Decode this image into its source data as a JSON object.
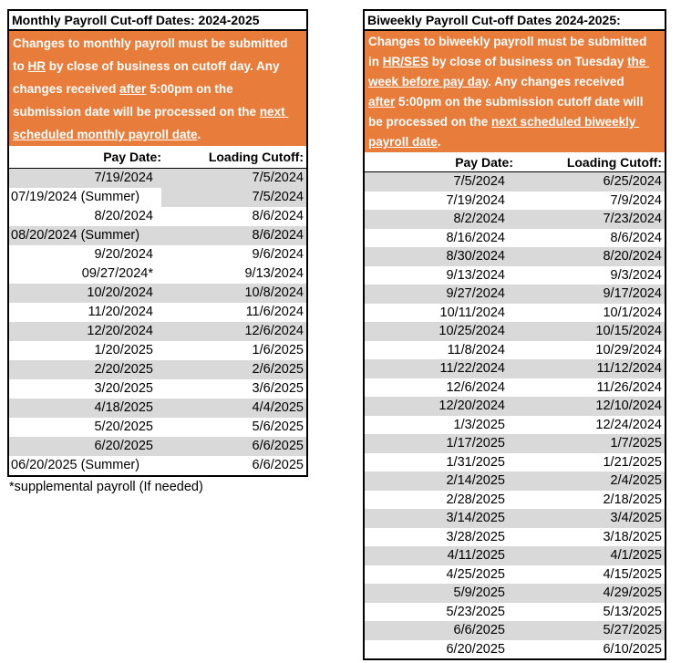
{
  "colors": {
    "note_orange": "#E87C3A",
    "band_gray": "#D9D9D9",
    "border_black": "#000000",
    "note_text_white": "#ffffff",
    "body_text_black": "#000000"
  },
  "monthly": {
    "title": "Monthly Payroll Cut-off Dates: 2024-2025",
    "note_segments": [
      {
        "text": "Changes to monthly payroll must be submitted\nto ",
        "underline": false
      },
      {
        "text": "HR",
        "underline": true
      },
      {
        "text": " by close of business on cutoff day. Any\nchanges received ",
        "underline": false
      },
      {
        "text": "after",
        "underline": true
      },
      {
        "text": " 5:00pm on the\nsubmission date will be processed on the ",
        "underline": false
      },
      {
        "text": "next \nscheduled monthly payroll date",
        "underline": true
      },
      {
        "text": ".",
        "underline": false
      }
    ],
    "columns": {
      "pay": "Pay Date:",
      "cutoff": "Loading Cutoff:"
    },
    "rows": [
      {
        "pay": "7/19/2024",
        "cutoff": "7/5/2024",
        "bg": [
          "gray",
          "gray"
        ]
      },
      {
        "pay": "07/19/2024 (Summer)",
        "cutoff": "7/5/2024",
        "bg": [
          "white",
          "gray"
        ]
      },
      {
        "pay": "8/20/2024",
        "cutoff": "8/6/2024",
        "bg": [
          "white",
          "white"
        ]
      },
      {
        "pay": "08/20/2024 (Summer)",
        "cutoff": "8/6/2024",
        "bg": [
          "gray",
          "gray"
        ]
      },
      {
        "pay": "9/20/2024",
        "cutoff": "9/6/2024",
        "bg": [
          "white",
          "white"
        ]
      },
      {
        "pay": "09/27/2024*",
        "cutoff": "9/13/2024",
        "bg": [
          "white",
          "white"
        ]
      },
      {
        "pay": "10/20/2024",
        "cutoff": "10/8/2024",
        "bg": [
          "gray",
          "gray"
        ]
      },
      {
        "pay": "11/20/2024",
        "cutoff": "11/6/2024",
        "bg": [
          "white",
          "white"
        ]
      },
      {
        "pay": "12/20/2024",
        "cutoff": "12/6/2024",
        "bg": [
          "gray",
          "gray"
        ]
      },
      {
        "pay": "1/20/2025",
        "cutoff": "1/6/2025",
        "bg": [
          "white",
          "white"
        ]
      },
      {
        "pay": "2/20/2025",
        "cutoff": "2/6/2025",
        "bg": [
          "gray",
          "gray"
        ]
      },
      {
        "pay": "3/20/2025",
        "cutoff": "3/6/2025",
        "bg": [
          "white",
          "white"
        ]
      },
      {
        "pay": "4/18/2025",
        "cutoff": "4/4/2025",
        "bg": [
          "gray",
          "gray"
        ]
      },
      {
        "pay": "5/20/2025",
        "cutoff": "5/6/2025",
        "bg": [
          "white",
          "white"
        ]
      },
      {
        "pay": "6/20/2025",
        "cutoff": "6/6/2025",
        "bg": [
          "gray",
          "gray"
        ]
      },
      {
        "pay": "06/20/2025 (Summer)",
        "cutoff": "6/6/2025",
        "bg": [
          "white",
          "white"
        ]
      }
    ],
    "footnote": "*supplemental payroll (If needed)"
  },
  "biweekly": {
    "title": "Biweekly Payroll Cut-off Dates 2024-2025:",
    "note_segments": [
      {
        "text": "Changes to biweekly payroll must be submitted\nin ",
        "underline": false
      },
      {
        "text": "HR/SES",
        "underline": true
      },
      {
        "text": " by close of business on Tuesday ",
        "underline": false
      },
      {
        "text": "the \nweek before pay day",
        "underline": true
      },
      {
        "text": ". Any changes received\n",
        "underline": false
      },
      {
        "text": "after",
        "underline": true
      },
      {
        "text": " 5:00pm on the submission cutoff date will\nbe processed on the ",
        "underline": false
      },
      {
        "text": "next scheduled biweekly \npayroll date",
        "underline": true
      },
      {
        "text": ".",
        "underline": false
      }
    ],
    "columns": {
      "pay": "Pay Date:",
      "cutoff": "Loading Cutoff:"
    },
    "rows": [
      {
        "pay": "7/5/2024",
        "cutoff": "6/25/2024",
        "bg": [
          "gray",
          "gray"
        ]
      },
      {
        "pay": "7/19/2024",
        "cutoff": "7/9/2024",
        "bg": [
          "white",
          "white"
        ]
      },
      {
        "pay": "8/2/2024",
        "cutoff": "7/23/2024",
        "bg": [
          "gray",
          "gray"
        ]
      },
      {
        "pay": "8/16/2024",
        "cutoff": "8/6/2024",
        "bg": [
          "white",
          "white"
        ]
      },
      {
        "pay": "8/30/2024",
        "cutoff": "8/20/2024",
        "bg": [
          "gray",
          "gray"
        ]
      },
      {
        "pay": "9/13/2024",
        "cutoff": "9/3/2024",
        "bg": [
          "white",
          "white"
        ]
      },
      {
        "pay": "9/27/2024",
        "cutoff": "9/17/2024",
        "bg": [
          "gray",
          "gray"
        ]
      },
      {
        "pay": "10/11/2024",
        "cutoff": "10/1/2024",
        "bg": [
          "white",
          "white"
        ]
      },
      {
        "pay": "10/25/2024",
        "cutoff": "10/15/2024",
        "bg": [
          "gray",
          "gray"
        ]
      },
      {
        "pay": "11/8/2024",
        "cutoff": "10/29/2024",
        "bg": [
          "white",
          "white"
        ]
      },
      {
        "pay": "11/22/2024",
        "cutoff": "11/12/2024",
        "bg": [
          "gray",
          "gray"
        ]
      },
      {
        "pay": "12/6/2024",
        "cutoff": "11/26/2024",
        "bg": [
          "white",
          "white"
        ]
      },
      {
        "pay": "12/20/2024",
        "cutoff": "12/10/2024",
        "bg": [
          "gray",
          "gray"
        ]
      },
      {
        "pay": "1/3/2025",
        "cutoff": "12/24/2024",
        "bg": [
          "white",
          "white"
        ]
      },
      {
        "pay": "1/17/2025",
        "cutoff": "1/7/2025",
        "bg": [
          "gray",
          "gray"
        ]
      },
      {
        "pay": "1/31/2025",
        "cutoff": "1/21/2025",
        "bg": [
          "white",
          "white"
        ]
      },
      {
        "pay": "2/14/2025",
        "cutoff": "2/4/2025",
        "bg": [
          "gray",
          "gray"
        ]
      },
      {
        "pay": "2/28/2025",
        "cutoff": "2/18/2025",
        "bg": [
          "white",
          "white"
        ]
      },
      {
        "pay": "3/14/2025",
        "cutoff": "3/4/2025",
        "bg": [
          "gray",
          "gray"
        ]
      },
      {
        "pay": "3/28/2025",
        "cutoff": "3/18/2025",
        "bg": [
          "white",
          "white"
        ]
      },
      {
        "pay": "4/11/2025",
        "cutoff": "4/1/2025",
        "bg": [
          "gray",
          "gray"
        ]
      },
      {
        "pay": "4/25/2025",
        "cutoff": "4/15/2025",
        "bg": [
          "white",
          "white"
        ]
      },
      {
        "pay": "5/9/2025",
        "cutoff": "4/29/2025",
        "bg": [
          "gray",
          "gray"
        ]
      },
      {
        "pay": "5/23/2025",
        "cutoff": "5/13/2025",
        "bg": [
          "white",
          "white"
        ]
      },
      {
        "pay": "6/6/2025",
        "cutoff": "5/27/2025",
        "bg": [
          "gray",
          "gray"
        ]
      },
      {
        "pay": "6/20/2025",
        "cutoff": "6/10/2025",
        "bg": [
          "white",
          "white"
        ]
      }
    ]
  }
}
